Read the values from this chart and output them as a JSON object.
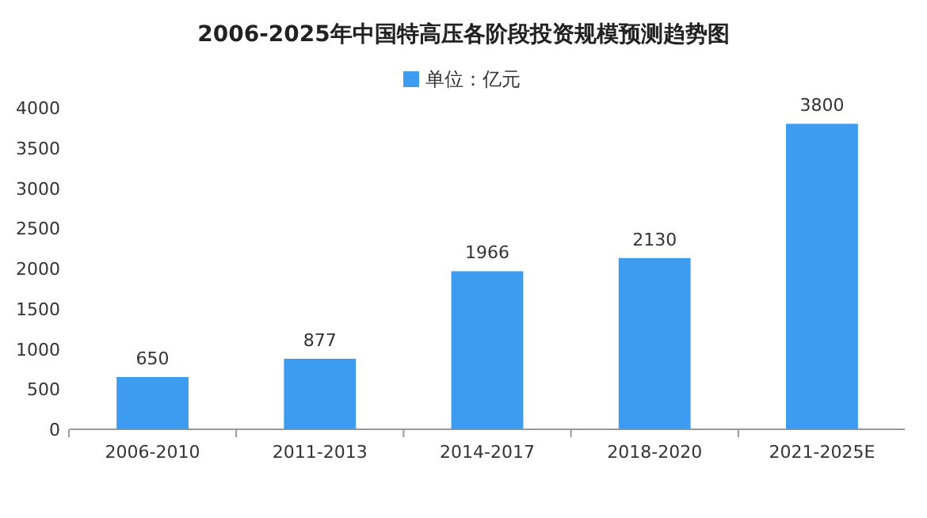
{
  "chart_data": {
    "type": "bar",
    "title": "2006-2025年中国特高压各阶段投资规模预测趋势图",
    "categories": [
      "2006-2010",
      "2011-2013",
      "2014-2017",
      "2018-2020",
      "2021-2025E"
    ],
    "series": [
      {
        "name": "单位：亿元",
        "color": "#3d9cf0",
        "values": [
          650,
          877,
          1966,
          2130,
          3800
        ]
      }
    ],
    "ylim": [
      0,
      4000
    ],
    "yticks": [
      0,
      500,
      1000,
      1500,
      2000,
      2500,
      3000,
      3500,
      4000
    ],
    "grid": false,
    "legend": "top",
    "data_labels": true
  }
}
